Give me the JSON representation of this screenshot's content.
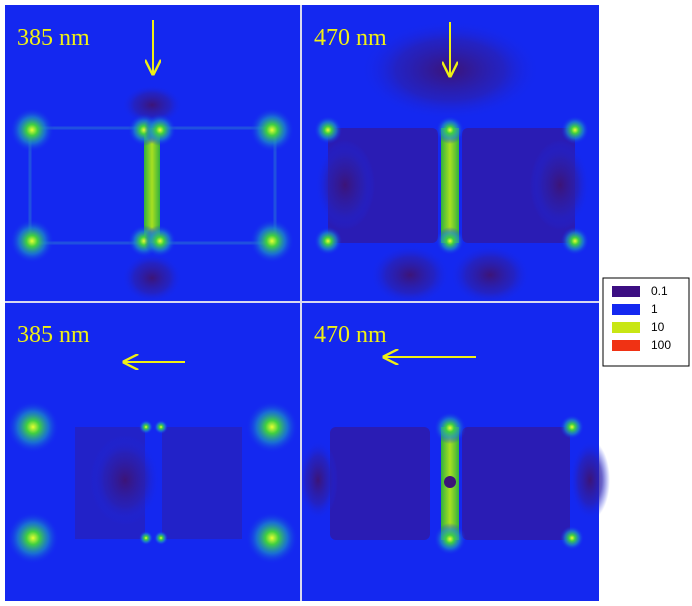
{
  "panels": [
    {
      "label": "385 nm"
    },
    {
      "label": "470 nm"
    },
    {
      "label": "385 nm"
    },
    {
      "label": "470 nm"
    }
  ],
  "legend": [
    {
      "label": "0.1",
      "color": "#3c0e82"
    },
    {
      "label": "1",
      "color": "#1428f0"
    },
    {
      "label": "10",
      "color": "#c8e614"
    },
    {
      "label": "100",
      "color": "#f03214"
    }
  ]
}
